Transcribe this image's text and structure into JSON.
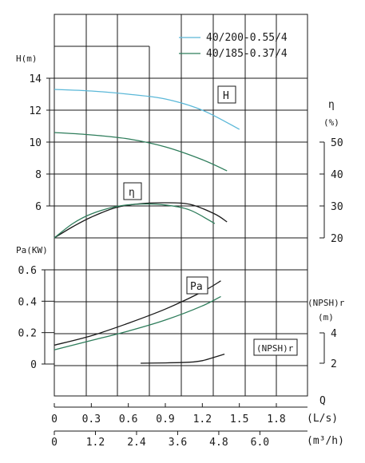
{
  "chart_data": {
    "type": "line",
    "legend": {
      "placement": "top-right",
      "entries": [
        {
          "name": "40/200-0.55/4",
          "color": "#5bb8d8"
        },
        {
          "name": "40/185-0.37/4",
          "color": "#2e7d5b"
        }
      ]
    },
    "x_axis_ls": {
      "label": "(L/s)",
      "ticks": [
        "0",
        "0.3",
        "0.6",
        "0.9",
        "1.2",
        "1.5",
        "1.8"
      ],
      "range": [
        0,
        1.95
      ]
    },
    "x_axis_m3h": {
      "label": "(m³/h)",
      "ticks": [
        "0",
        "1.2",
        "2.4",
        "3.6",
        "4.8",
        "6.0"
      ]
    },
    "q_label": "Q",
    "axes": {
      "head": {
        "label": "H(m)",
        "ticks": [
          "14",
          "12",
          "10",
          "8",
          "6"
        ],
        "range": [
          5,
          17
        ]
      },
      "eff": {
        "label_top": "η",
        "label_unit": "(%)",
        "ticks": [
          "50",
          "40",
          "30",
          "20"
        ],
        "range": [
          20,
          55
        ]
      },
      "power": {
        "label": "Pa(KW)",
        "ticks": [
          "0.6",
          "0.4",
          "0.2",
          "0"
        ],
        "range": [
          0,
          0.6
        ]
      },
      "npsh": {
        "label_top": "(NPSH)r",
        "label_unit": "(m)",
        "ticks": [
          "4",
          "2"
        ],
        "range": [
          2,
          4
        ]
      }
    },
    "curve_labels": {
      "H": "H",
      "eta": "η",
      "Pa": "Pa",
      "NPSH": "(NPSH)r"
    },
    "series": [
      {
        "name": "40/200-0.55/4",
        "curve": "H",
        "x": [
          0,
          0.3,
          0.6,
          0.9,
          1.2,
          1.5
        ],
        "y": [
          13.3,
          13.2,
          13.0,
          12.7,
          12.0,
          10.8
        ]
      },
      {
        "name": "40/185-0.37/4",
        "curve": "H",
        "x": [
          0,
          0.3,
          0.6,
          0.9,
          1.2,
          1.4
        ],
        "y": [
          10.6,
          10.45,
          10.2,
          9.7,
          8.9,
          8.2
        ]
      },
      {
        "name": "40/200-0.55/4",
        "curve": "eta",
        "x": [
          0,
          0.15,
          0.3,
          0.5,
          0.7,
          0.9,
          1.1,
          1.3,
          1.4
        ],
        "y": [
          20,
          23.5,
          26.5,
          29.5,
          30.7,
          31,
          30.5,
          27.5,
          25
        ]
      },
      {
        "name": "40/185-0.37/4",
        "curve": "eta",
        "x": [
          0,
          0.15,
          0.3,
          0.5,
          0.7,
          0.9,
          1.1,
          1.3
        ],
        "y": [
          20,
          24.5,
          27.5,
          29.8,
          30.6,
          30.3,
          28.7,
          24.5
        ]
      },
      {
        "name": "40/200-0.55/4",
        "curve": "Pa",
        "x": [
          0,
          0.3,
          0.6,
          0.9,
          1.2,
          1.35
        ],
        "y": [
          0.12,
          0.18,
          0.26,
          0.35,
          0.46,
          0.53
        ]
      },
      {
        "name": "40/185-0.37/4",
        "curve": "Pa",
        "x": [
          0,
          0.3,
          0.6,
          0.9,
          1.2,
          1.35
        ],
        "y": [
          0.09,
          0.15,
          0.21,
          0.28,
          0.37,
          0.43
        ]
      },
      {
        "name": "40/200-0.55/4",
        "curve": "NPSH",
        "x": [
          0.7,
          0.9,
          1.1,
          1.2,
          1.3,
          1.38
        ],
        "y": [
          2.0,
          2.02,
          2.07,
          2.17,
          2.4,
          2.6
        ]
      }
    ]
  }
}
